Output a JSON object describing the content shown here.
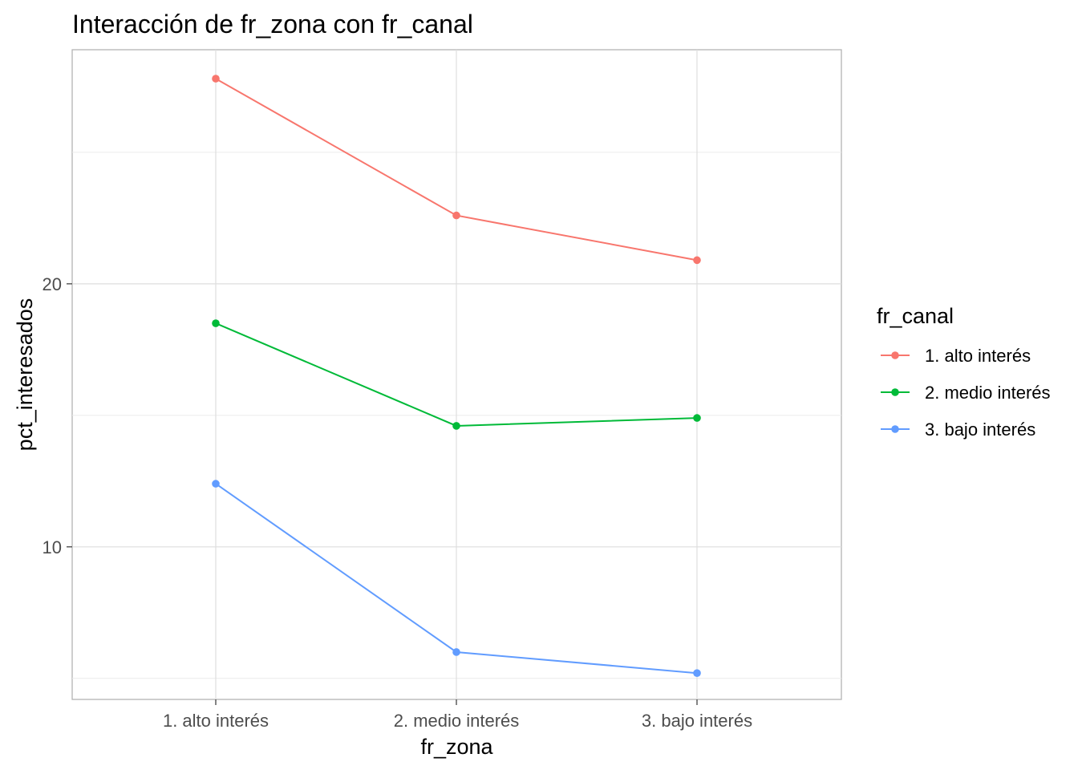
{
  "chart_data": {
    "type": "line",
    "title": "Interacción de fr_zona con fr_canal",
    "xlabel": "fr_zona",
    "ylabel": "pct_interesados",
    "categories": [
      "1. alto interés",
      "2. medio interés",
      "3. bajo interés"
    ],
    "ylim": [
      4.2,
      28.9
    ],
    "y_ticks": [
      10,
      20
    ],
    "y_tick_labels": [
      "10",
      "20"
    ],
    "grid": true,
    "legend": {
      "title": "fr_canal",
      "placement": "right"
    },
    "series": [
      {
        "name": "1. alto interés",
        "color": "#F8766D",
        "values": [
          27.8,
          22.6,
          20.9
        ]
      },
      {
        "name": "2. medio interés",
        "color": "#00BA38",
        "values": [
          18.5,
          14.6,
          14.9
        ]
      },
      {
        "name": "3. bajo interés",
        "color": "#619CFF",
        "values": [
          12.4,
          6.0,
          5.2
        ]
      }
    ]
  }
}
